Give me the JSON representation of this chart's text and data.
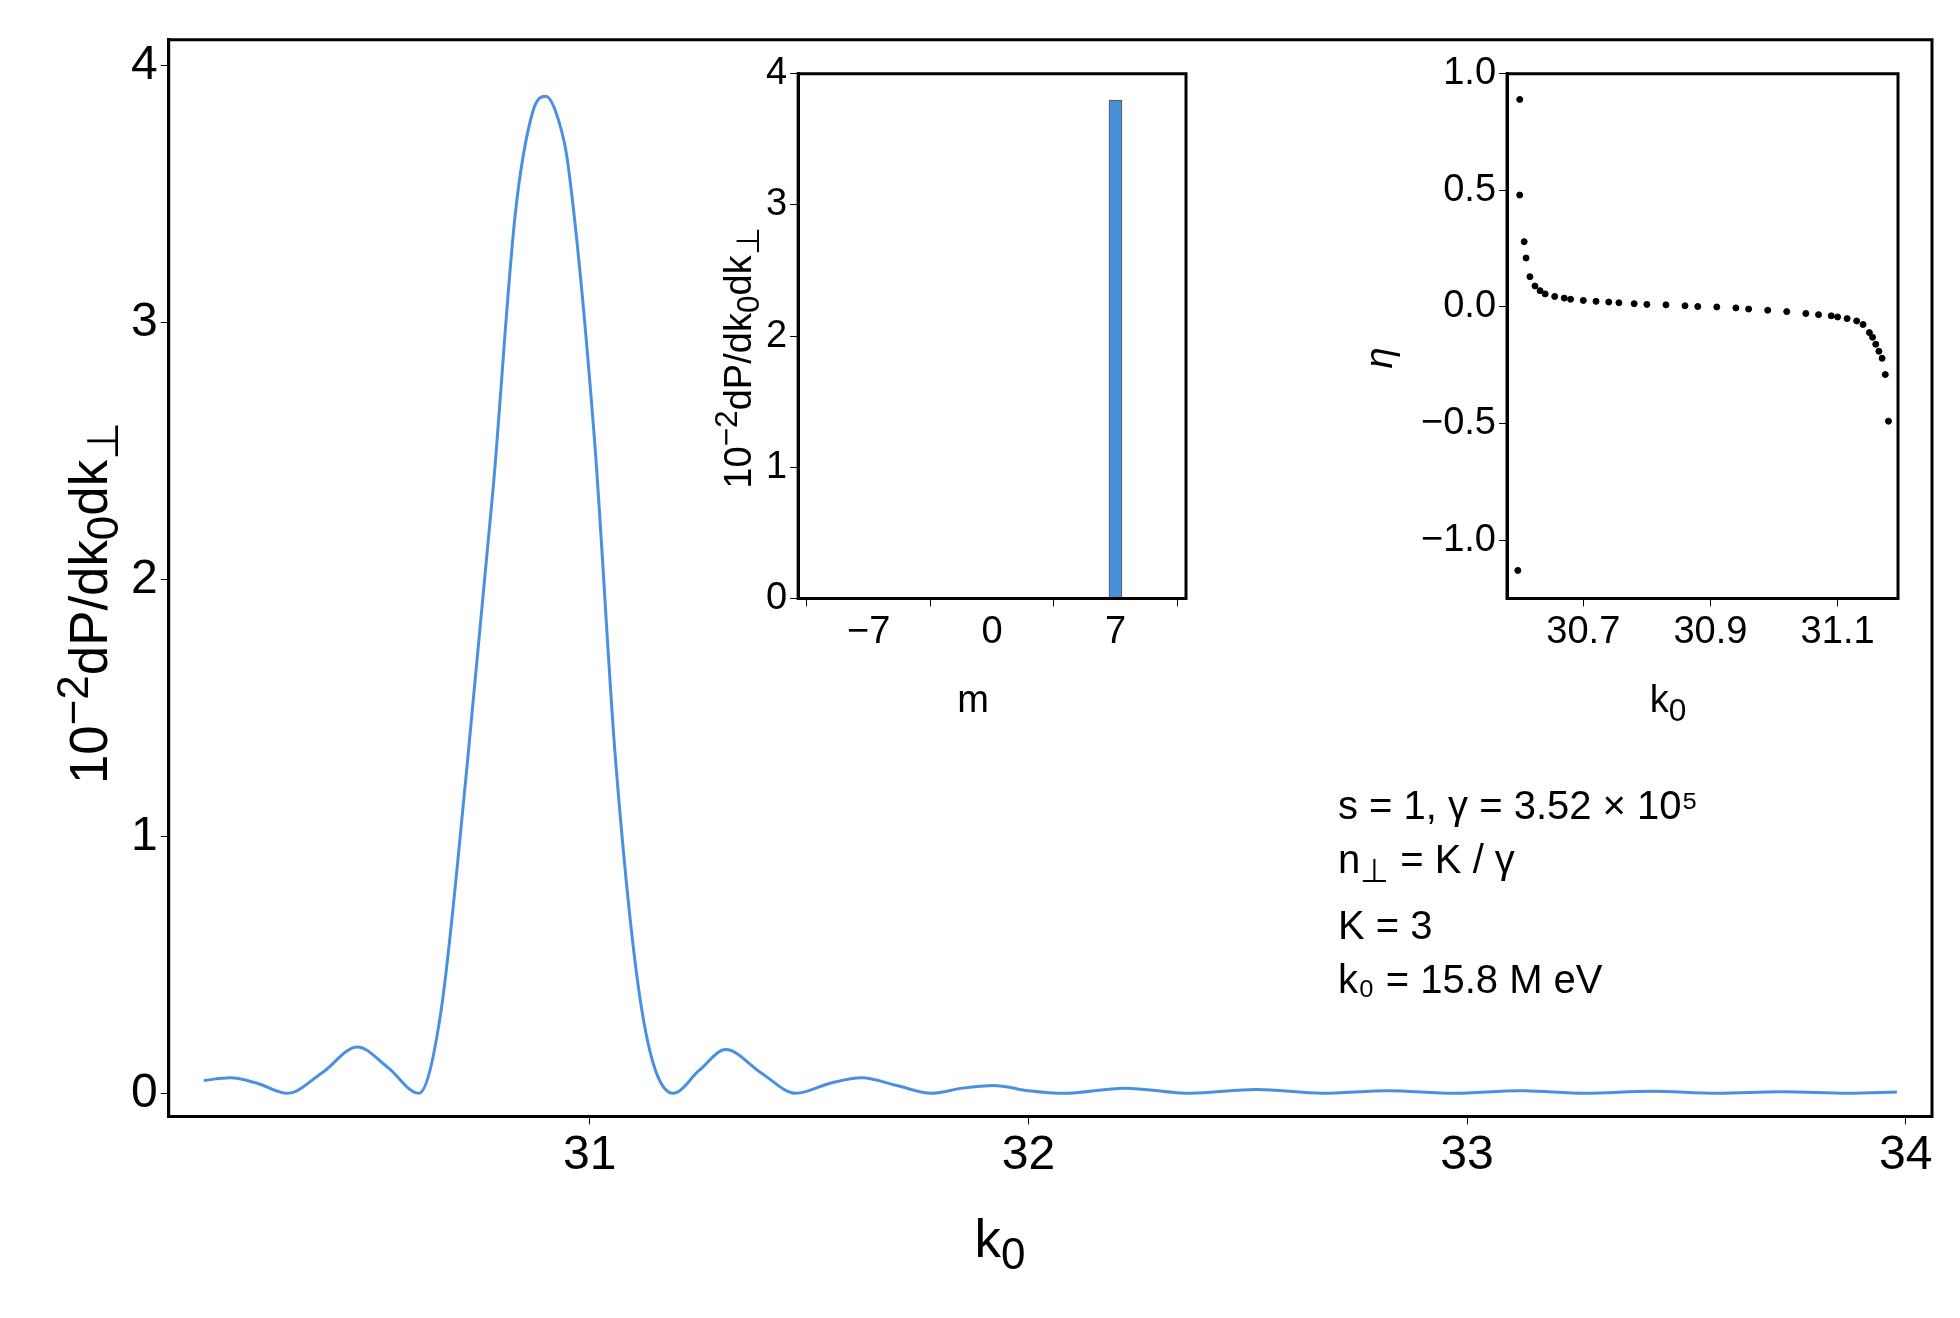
{
  "chart_data": [
    {
      "type": "line",
      "xlabel": "k$_{0}$",
      "ylabel": "10$^{−2}$dP/dk$_{0}$dk$_{⊥}$",
      "color": "#4a90e2",
      "x": [
        30.12,
        30.18,
        30.24,
        30.31,
        30.39,
        30.47,
        30.54,
        30.61,
        30.66,
        30.72,
        30.78,
        30.83,
        30.87,
        30.9,
        30.93,
        30.95,
        31.01,
        31.06,
        31.12,
        31.19,
        31.25,
        31.31,
        31.39,
        31.47,
        31.55,
        31.62,
        31.7,
        31.78,
        31.85,
        31.92,
        32.0,
        32.08,
        32.22,
        32.37,
        32.52,
        32.67,
        32.82,
        32.97,
        33.12,
        33.27,
        33.42,
        33.57,
        33.72,
        33.87,
        33.98
      ],
      "values": [
        0.05,
        0.06,
        0.04,
        0.0,
        0.08,
        0.18,
        0.1,
        0.0,
        0.31,
        1.27,
        2.36,
        3.42,
        3.82,
        3.88,
        3.78,
        3.62,
        2.56,
        1.27,
        0.31,
        0.0,
        0.09,
        0.17,
        0.08,
        0.0,
        0.04,
        0.06,
        0.03,
        0.0,
        0.02,
        0.03,
        0.01,
        0.0,
        0.02,
        0.0,
        0.015,
        0.0,
        0.01,
        0.0,
        0.01,
        0.0,
        0.008,
        0.0,
        0.006,
        0.0,
        0.005
      ],
      "xlim": [
        30.04,
        34.06
      ],
      "ylim": [
        -0.09,
        4.1
      ],
      "xticks": [
        31,
        32,
        33,
        34
      ],
      "yticks": [
        0,
        1,
        2,
        3,
        4
      ],
      "annotations": [
        "s = 1, γ = 3.52 × 10⁵",
        "n$_{⊥}$ = K / γ",
        "K = 3",
        "k₀ = 15.8 M eV"
      ]
    },
    {
      "type": "bar",
      "xlabel": "m",
      "ylabel": "10$^{−2}$dP/dk$_{0}$dk$_{⊥}$",
      "color": "#4a90d9",
      "x": [
        7
      ],
      "values": [
        3.8
      ],
      "xlim": [
        -11,
        11
      ],
      "ylim": [
        0,
        4
      ],
      "xticks": [
        {
          "value": -7,
          "label": "−7"
        },
        0,
        7
      ],
      "yticks": [
        0,
        1,
        2,
        3,
        4
      ]
    },
    {
      "type": "scatter",
      "xlabel": "k$_{0}$",
      "ylabel": "η",
      "color": "#000000",
      "marker": "circle",
      "x": [
        30.597,
        30.6,
        30.6,
        30.607,
        30.61,
        30.616,
        30.624,
        30.632,
        30.64,
        30.655,
        30.67,
        30.68,
        30.7,
        30.72,
        30.74,
        30.756,
        30.78,
        30.8,
        30.83,
        30.86,
        30.88,
        30.91,
        30.94,
        30.96,
        30.99,
        31.02,
        31.05,
        31.07,
        31.09,
        31.1,
        31.115,
        31.13,
        31.14,
        31.15,
        31.155,
        31.16,
        31.165,
        31.17,
        31.175,
        31.18
      ],
      "values": [
        -1.13,
        0.89,
        0.48,
        0.28,
        0.21,
        0.13,
        0.09,
        0.07,
        0.056,
        0.045,
        0.038,
        0.033,
        0.028,
        0.024,
        0.021,
        0.018,
        0.014,
        0.011,
        0.009,
        0.005,
        0.002,
        0.0,
        -0.004,
        -0.009,
        -0.014,
        -0.02,
        -0.028,
        -0.033,
        -0.038,
        -0.043,
        -0.05,
        -0.06,
        -0.075,
        -0.11,
        -0.13,
        -0.16,
        -0.19,
        -0.22,
        -0.29,
        -0.49
      ],
      "xlim": [
        30.58,
        31.195
      ],
      "ylim": [
        -1.25,
        1.0
      ],
      "xticks": [
        30.7,
        30.9,
        31.1
      ],
      "yticks": [
        {
          "value": -1,
          "label": "−1.0"
        },
        {
          "value": -0.5,
          "label": "−0.5"
        },
        {
          "value": 0,
          "label": "0.0"
        },
        {
          "value": 0.5,
          "label": "0.5"
        },
        {
          "value": 1,
          "label": "1.0"
        }
      ]
    }
  ]
}
